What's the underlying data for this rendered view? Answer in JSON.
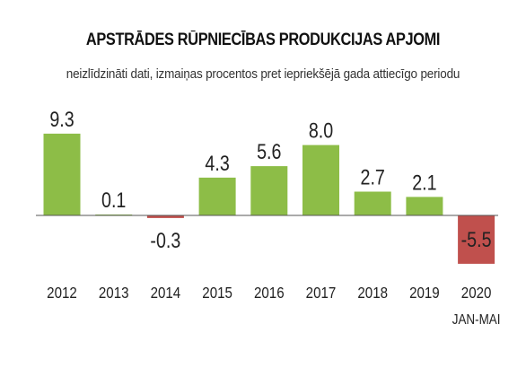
{
  "chart_data": {
    "type": "bar",
    "title": "APSTRĀDES RŪPNIECĪBAS PRODUKCIJAS APJOMI",
    "subtitle": "neizlīdzināti dati, izmaiņas procentos pret iepriekšējā gada attiecīgo periodu",
    "categories": [
      "2012",
      "2013",
      "2014",
      "2015",
      "2016",
      "2017",
      "2018",
      "2019",
      "2020"
    ],
    "category_sublabels": [
      "",
      "",
      "",
      "",
      "",
      "",
      "",
      "",
      "JAN-MAI"
    ],
    "values": [
      9.3,
      0.1,
      -0.3,
      4.3,
      5.6,
      8.0,
      2.7,
      2.1,
      -5.5
    ],
    "value_labels": [
      "9.3",
      "0.1",
      "-0.3",
      "4.3",
      "5.6",
      "8.0",
      "2.7",
      "2.1",
      "-5.5"
    ],
    "xlabel": "",
    "ylabel": "",
    "grid": false,
    "legend": "none",
    "colors": {
      "positive": "#8dbd47",
      "negative": "#c0504d",
      "axis": "#555555"
    }
  }
}
